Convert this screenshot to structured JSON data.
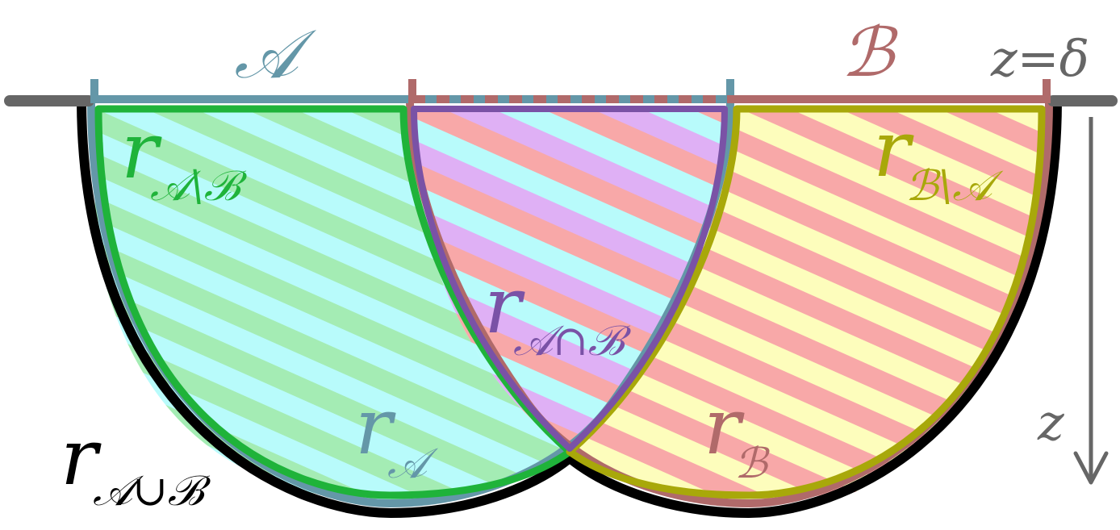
{
  "colors": {
    "boundary_line": "#666666",
    "region_A": "#6497a8",
    "region_B": "#b06a6a",
    "union": "#000000",
    "A_minus_B": "#1fb33a",
    "B_minus_A": "#a8a80a",
    "intersection": "#7a52a6",
    "fill_cyan": "#b8fbfb",
    "fill_green": "#a4ecb4",
    "fill_pink": "#f8a8a8",
    "fill_yellow": "#fdfdbc",
    "fill_violet": "#dfb0f5"
  },
  "labels": {
    "A": "𝒜",
    "B": "ℬ",
    "boundary": "z=δ",
    "z_axis": "z",
    "r_A_minus_B": {
      "base": "r",
      "sub": "𝒜\\ℬ"
    },
    "r_B_minus_A": {
      "base": "r",
      "sub": "ℬ\\𝒜"
    },
    "r_A_cap_B": {
      "base": "r",
      "sub": "𝒜∩ℬ"
    },
    "r_A": {
      "base": "r",
      "sub": "𝒜"
    },
    "r_B": {
      "base": "r",
      "sub": "ℬ"
    },
    "r_A_cup_B": {
      "base": "r",
      "sub": "𝒜∪ℬ"
    }
  }
}
